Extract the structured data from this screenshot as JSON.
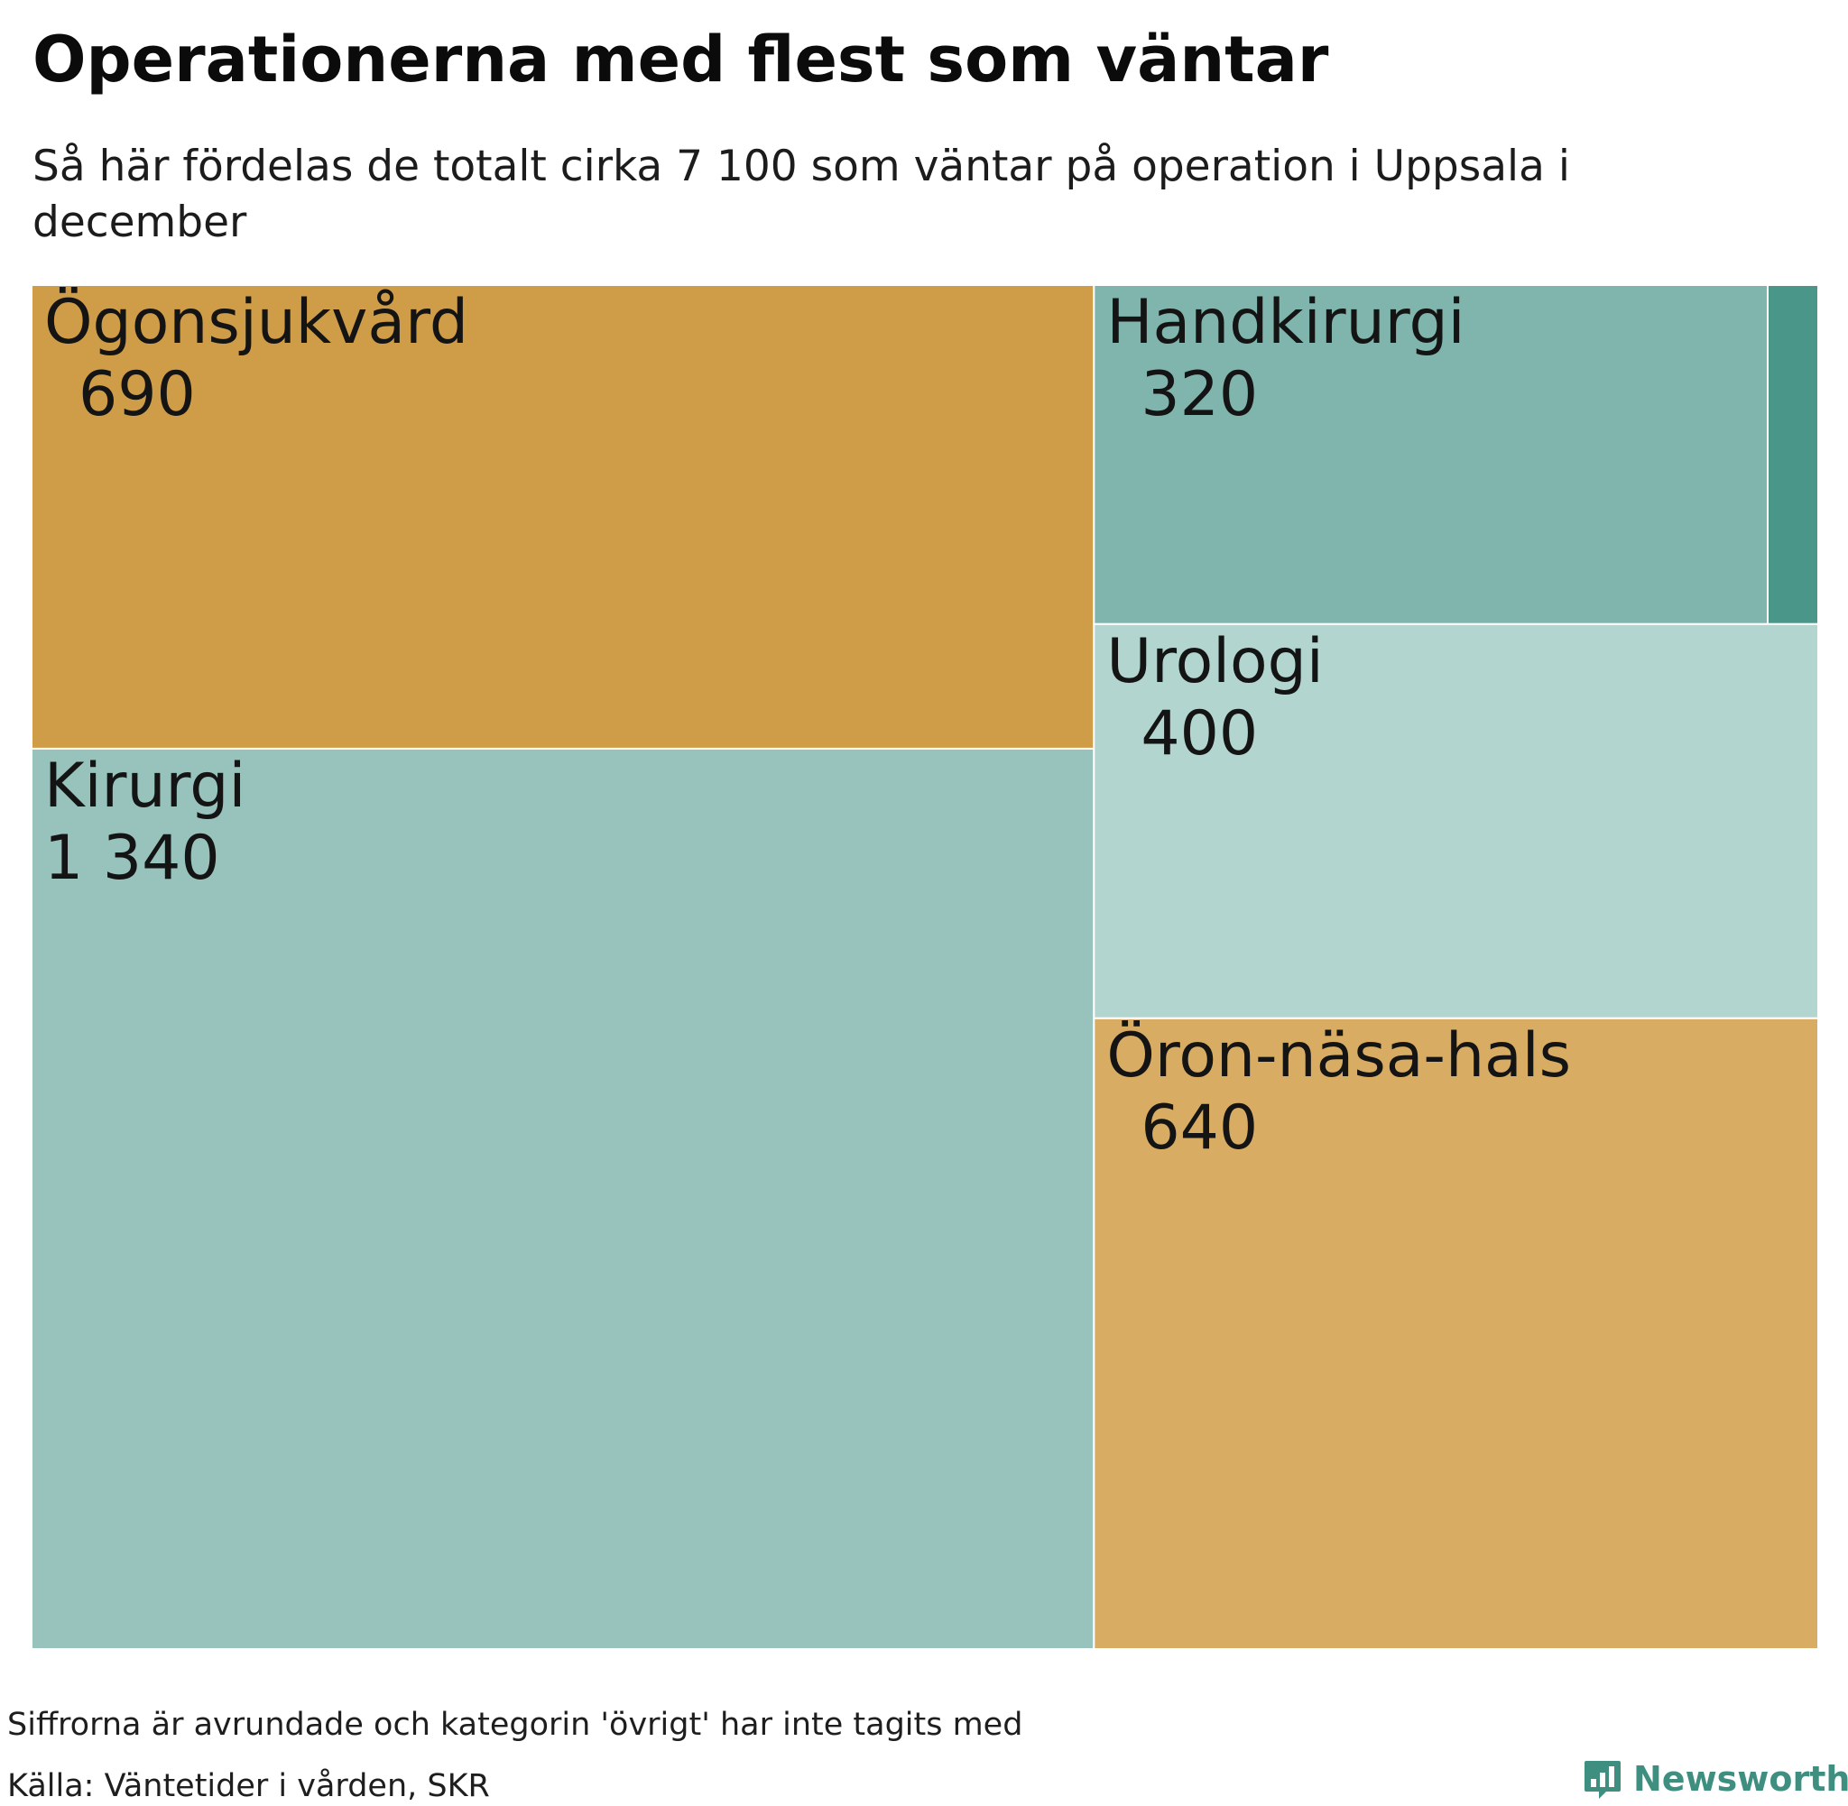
{
  "title": "Operationerna med flest som väntar",
  "subtitle": "Så här fördelas de totalt cirka 7 100 som väntar på operation i Uppsala i december",
  "footer": {
    "note": "Siffrorna är avrundade och kategorin 'övrigt' har inte tagits med",
    "source": "Källa: Väntetider i vården, SKR"
  },
  "logo": {
    "text": "Newsworthy",
    "icon": "bar-chart-speech-bubble-icon",
    "color": "#3f8f80"
  },
  "chart_data": {
    "type": "treemap",
    "title": "Operationerna med flest som väntar",
    "subtitle": "Så här fördelas de totalt cirka 7 100 som väntar på operation i Uppsala i december",
    "items": [
      {
        "name": "Ögonsjukvård",
        "label": "690",
        "value": 690,
        "color": "#cf9d47"
      },
      {
        "name": "Kirurgi",
        "label": "1 340",
        "value": 1340,
        "color": "#98c3bd"
      },
      {
        "name": "Handkirurgi",
        "label": "320",
        "value": 320,
        "color": "#7fb5ad"
      },
      {
        "name": "",
        "label": "",
        "value": 24,
        "color": "#4a9689"
      },
      {
        "name": "Urologi",
        "label": "400",
        "value": 400,
        "color": "#b2d6cf"
      },
      {
        "name": "Öron-näsa-hals",
        "label": "640",
        "value": 640,
        "color": "#d8ad63"
      }
    ]
  }
}
